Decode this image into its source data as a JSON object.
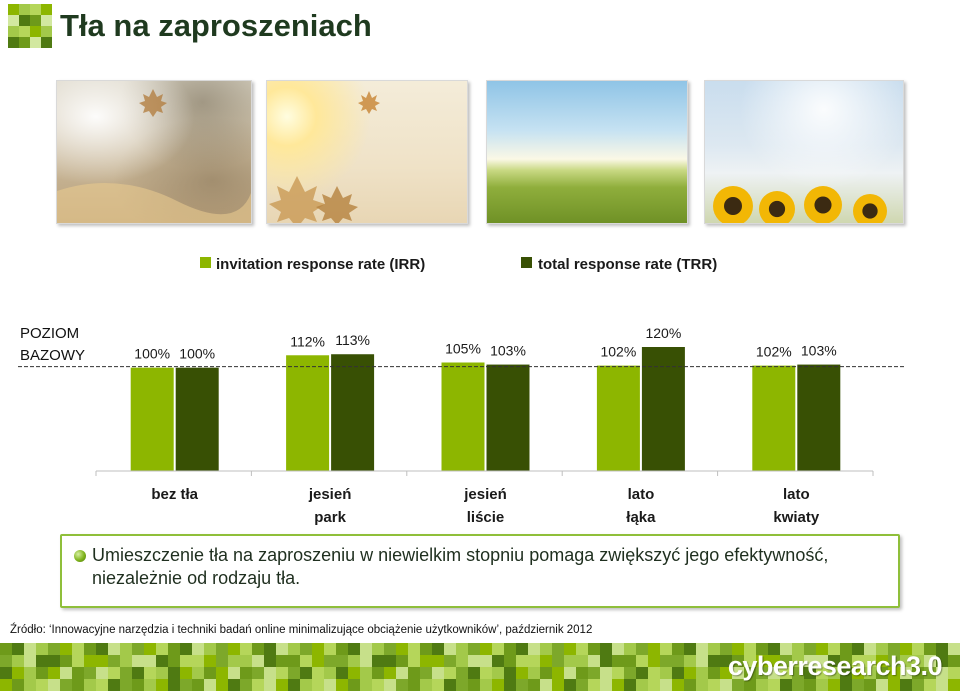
{
  "header": {
    "title": "Tła na zaproszeniach"
  },
  "colors": {
    "irr": "#8db600",
    "trr": "#385004",
    "accent_border": "#8fbf3a"
  },
  "chart_data": {
    "type": "bar",
    "categories": [
      [
        "bez tła"
      ],
      [
        "jesień",
        "park"
      ],
      [
        "jesień",
        "liście"
      ],
      [
        "lato",
        "łąka"
      ],
      [
        "lato",
        "kwiaty"
      ]
    ],
    "series": [
      {
        "name": "invitation response rate (IRR)",
        "values": [
          100,
          112,
          105,
          102,
          102
        ]
      },
      {
        "name": "total response rate (TRR)",
        "values": [
          100,
          113,
          103,
          120,
          103
        ]
      }
    ],
    "value_labels": [
      [
        "100%",
        "112%",
        "105%",
        "102%",
        "102%"
      ],
      [
        "100%",
        "113%",
        "103%",
        "120%",
        "103%"
      ]
    ],
    "ylim": [
      0,
      120
    ],
    "baseline": {
      "value": 100,
      "label_lines": [
        "POZIOM",
        "BAZOWY"
      ]
    },
    "legend": "top",
    "grid": false,
    "title": "",
    "xlabel": "",
    "ylabel": ""
  },
  "note": {
    "text": "Umieszczenie tła na zaproszeniu w niewielkim stopniu pomaga zwiększyć jego efektywność, niezależnie od rodzaju tła."
  },
  "source": {
    "text": "Źródło: ‘Innowacyjne narzędzia i techniki badań online minimalizujące obciążenie użytkowników’, październik 2012"
  },
  "footer": {
    "brand": "cyberresearch3.0"
  }
}
